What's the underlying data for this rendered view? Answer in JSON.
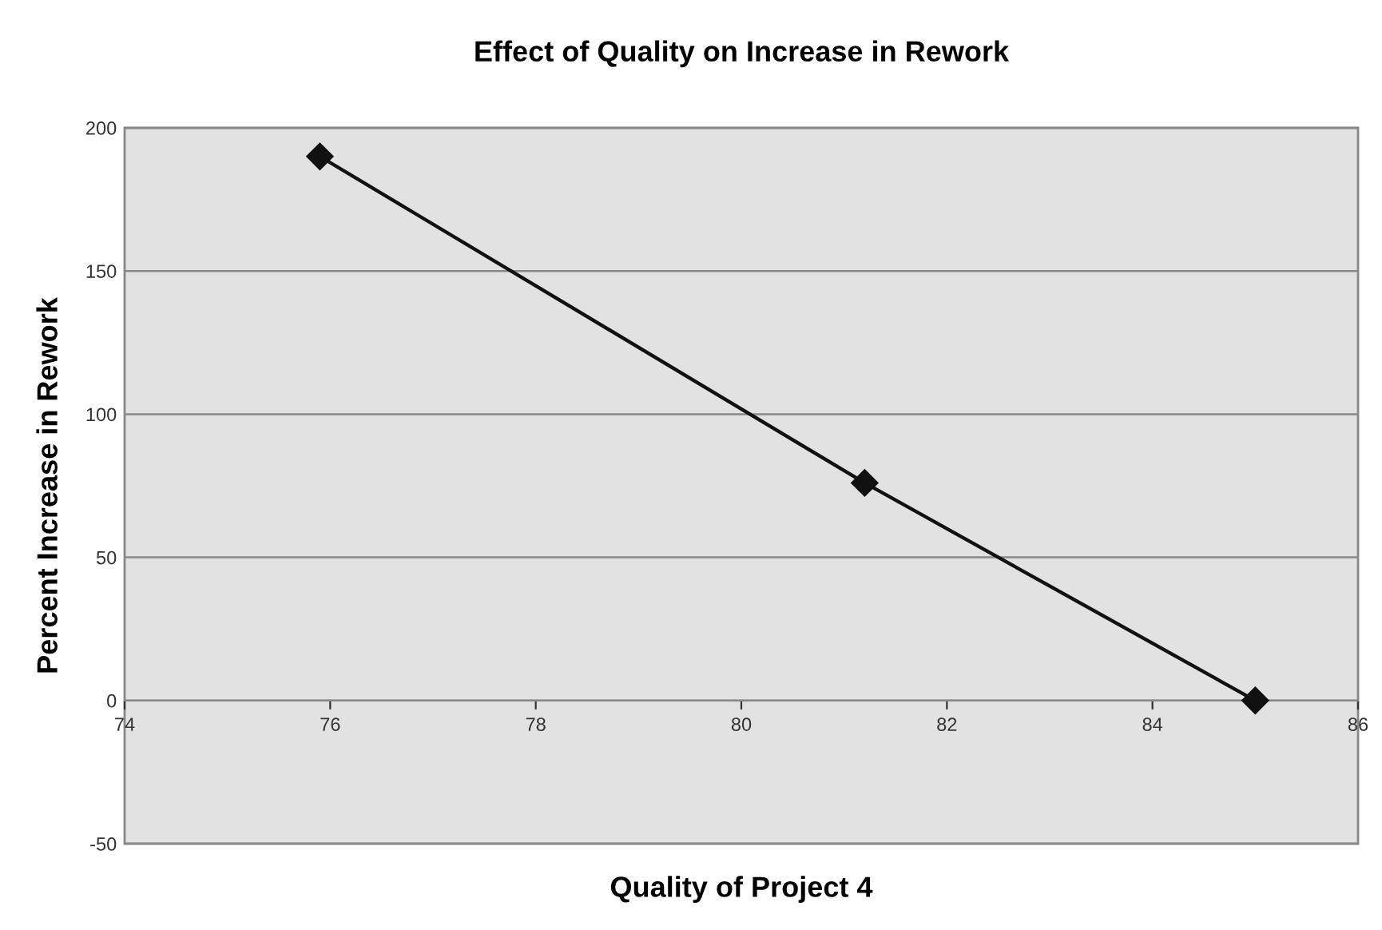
{
  "chart_data": {
    "type": "line",
    "title": "Effect of Quality on Increase in Rework",
    "xlabel": "Quality of Project 4",
    "ylabel": "Percent Increase in Rework",
    "x": [
      75.9,
      81.2,
      85.0
    ],
    "series": [
      {
        "color": "#111111",
        "values": [
          190,
          76,
          0
        ]
      }
    ],
    "xlim": [
      74,
      86
    ],
    "xticks": [
      74,
      76,
      78,
      80,
      82,
      84,
      86
    ],
    "ylim": [
      -50,
      200
    ],
    "yticks": [
      -50,
      0,
      50,
      100,
      150,
      200
    ],
    "grid": "y",
    "marker": "diamond",
    "line_style": "solid",
    "legend": false
  }
}
